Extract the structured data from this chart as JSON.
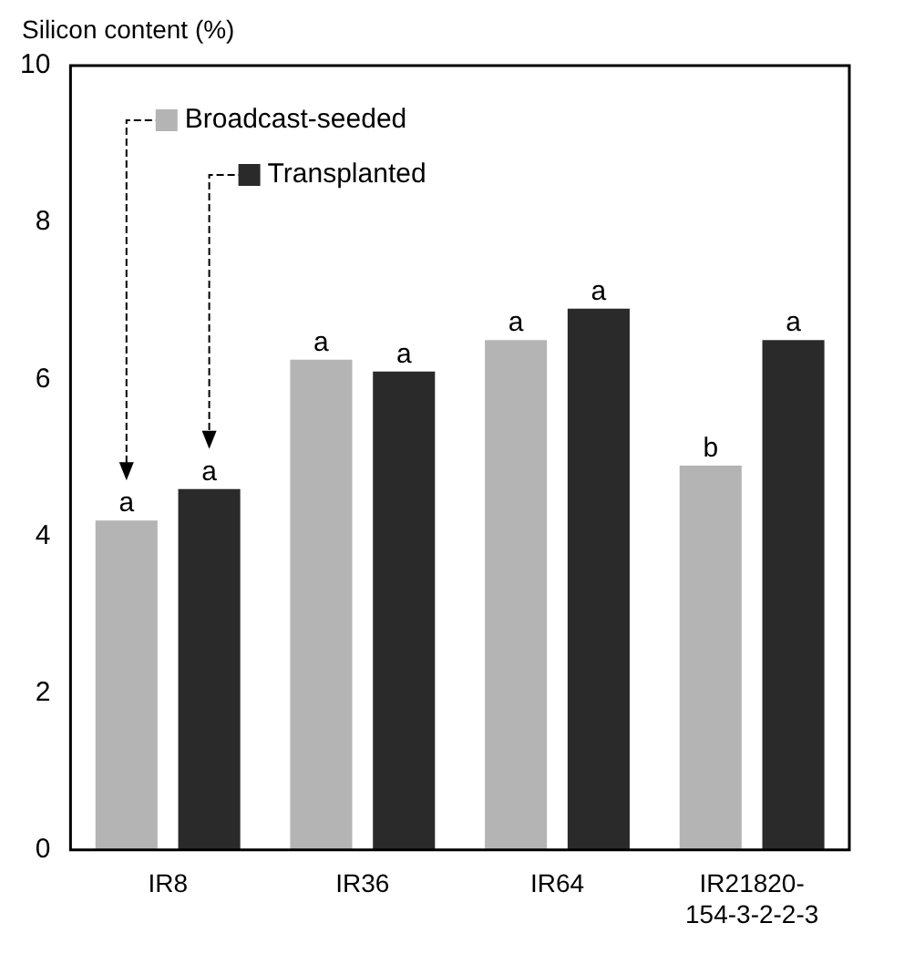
{
  "chart_data": {
    "type": "bar",
    "ylabel": "Silicon content (%)",
    "categories": [
      "IR8",
      "IR36",
      "IR64",
      "IR21820-\n154-3-2-2-3"
    ],
    "series": [
      {
        "name": "Broadcast-seeded",
        "color": "#b4b4b4",
        "values": [
          4.2,
          6.25,
          6.5,
          4.9
        ],
        "value_labels": [
          "a",
          "a",
          "a",
          "b"
        ]
      },
      {
        "name": "Transplanted",
        "color": "#2a2a2a",
        "values": [
          4.6,
          6.1,
          6.9,
          6.5
        ],
        "value_labels": [
          "a",
          "a",
          "a",
          "a"
        ]
      }
    ],
    "ylim": [
      0,
      10
    ],
    "yticks": [
      0,
      2,
      4,
      6,
      8,
      10
    ],
    "grid": false,
    "legend": "top left"
  }
}
